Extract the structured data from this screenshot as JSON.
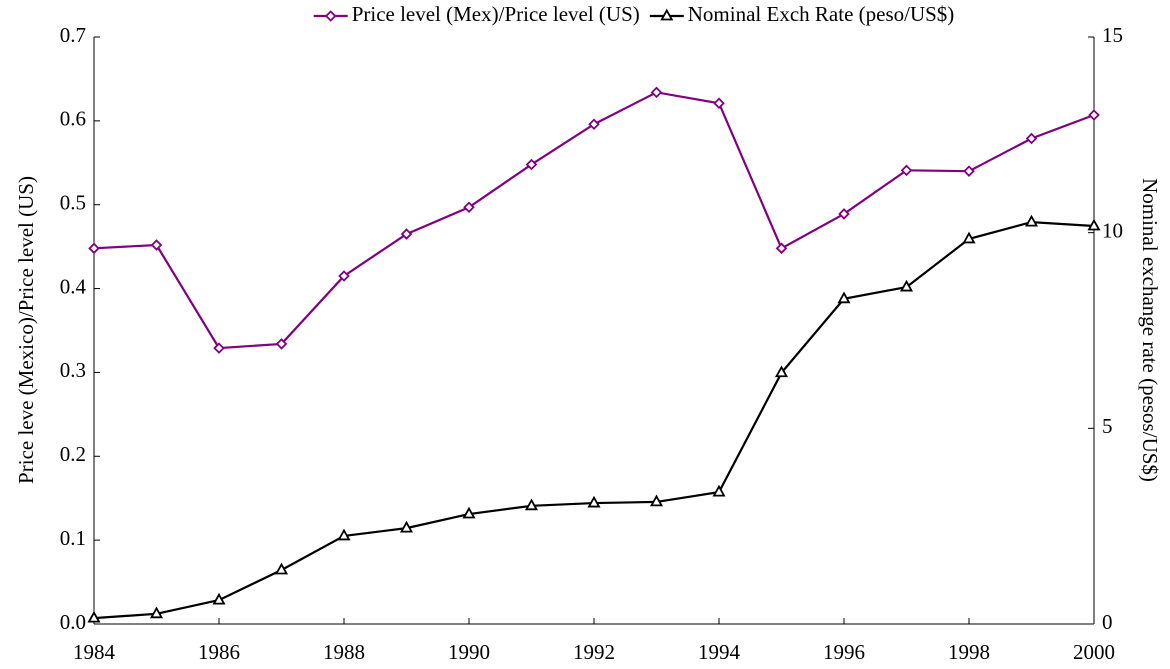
{
  "chart_data": {
    "type": "line",
    "x": [
      1984,
      1985,
      1986,
      1987,
      1988,
      1989,
      1990,
      1991,
      1992,
      1993,
      1994,
      1995,
      1996,
      1997,
      1998,
      1999,
      2000
    ],
    "series": [
      {
        "name": "Price level (Mex)/Price level (US)",
        "color": "#800080",
        "marker": "diamond",
        "values": [
          0.448,
          0.452,
          0.329,
          0.334,
          0.415,
          0.465,
          0.497,
          0.548,
          0.596,
          0.634,
          0.621,
          0.448,
          0.489,
          0.541,
          0.54,
          0.579,
          0.607
        ]
      },
      {
        "name": "Nominal Exch Rate (peso/US$)",
        "color": "#000000",
        "marker": "triangle",
        "axis": "y2",
        "values": [
          0.15,
          0.26,
          0.61,
          1.38,
          2.25,
          2.45,
          2.81,
          3.02,
          3.09,
          3.12,
          3.37,
          6.42,
          8.31,
          8.61,
          9.84,
          10.27,
          10.17
        ]
      }
    ],
    "ylabel": "Price leve (Mexico)/Price level (US)",
    "y2label": "Nominal exchange rate (pesos/US$)",
    "xlim": [
      1984,
      2000
    ],
    "xticks": [
      1984,
      1986,
      1988,
      1990,
      1992,
      1994,
      1996,
      1998,
      2000
    ],
    "ylim": [
      0,
      0.7
    ],
    "yticks": [
      {
        "value": 0,
        "label": "0.0"
      },
      0.1,
      0.2,
      0.3,
      0.4,
      0.5,
      0.6,
      0.7
    ],
    "y2lim": [
      0,
      15
    ],
    "y2ticks": [
      0,
      5,
      10,
      15
    ],
    "legend": "top"
  }
}
